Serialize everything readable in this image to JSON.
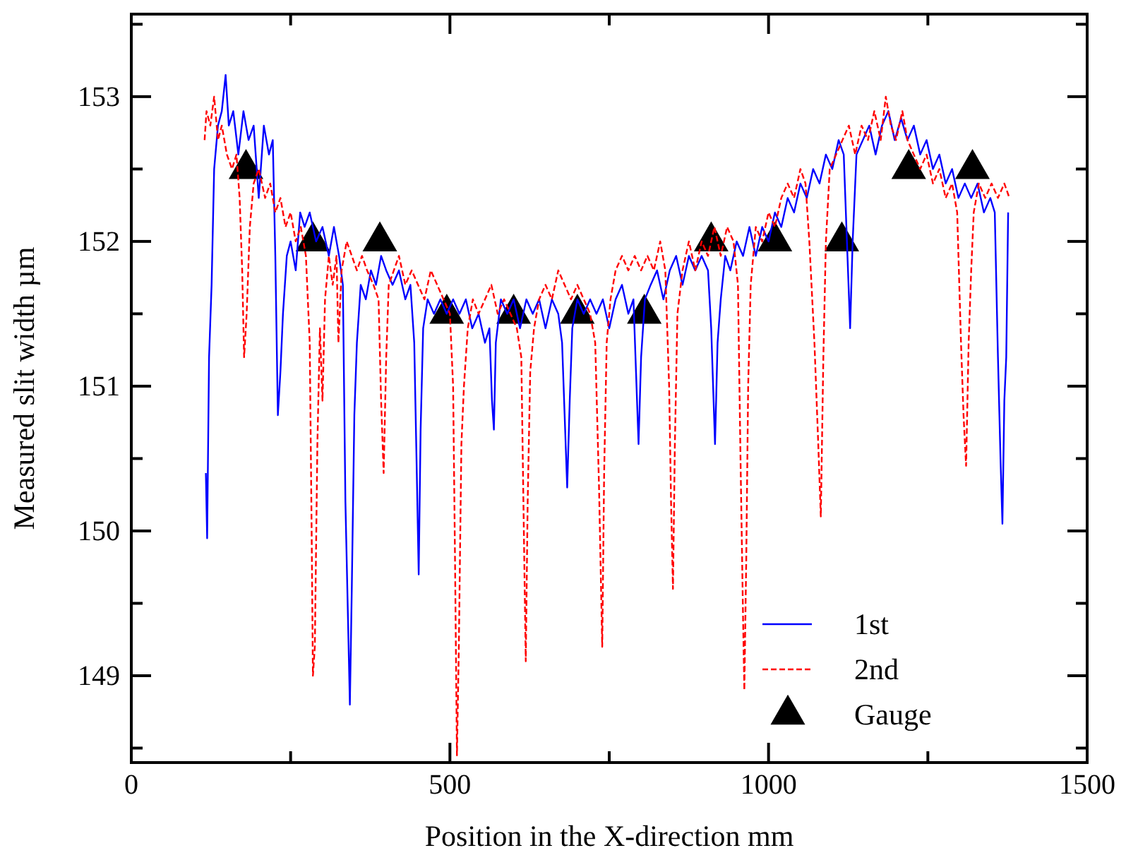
{
  "chart_data": {
    "type": "line",
    "xlabel": "Position in the X-direction  mm",
    "ylabel": "Measured slit width µm",
    "xlim": [
      0,
      1500
    ],
    "ylim": [
      148.4,
      153.57
    ],
    "xticks": [
      0,
      {
        "value": 250,
        "label": null
      },
      500,
      {
        "value": 750,
        "label": null
      },
      1000,
      {
        "value": 1250,
        "label": null
      },
      1500
    ],
    "yticks": [
      {
        "value": 148.5,
        "label": null
      },
      149,
      {
        "value": 149.5,
        "label": null
      },
      150,
      {
        "value": 150.5,
        "label": null
      },
      151,
      {
        "value": 151.5,
        "label": null
      },
      152,
      {
        "value": 152.5,
        "label": null
      },
      153,
      {
        "value": 153.5,
        "label": null
      }
    ],
    "grid": false,
    "legend": "bottom right",
    "series": [
      {
        "name": "1st",
        "color": "#0000ff",
        "line_style": "solid",
        "marker": "none",
        "x": [
          117,
          119,
          122,
          126,
          130,
          136,
          142,
          148,
          153,
          160,
          168,
          176,
          184,
          192,
          200,
          208,
          216,
          222,
          226,
          230,
          234,
          238,
          244,
          250,
          258,
          265,
          272,
          280,
          290,
          300,
          310,
          318,
          326,
          332,
          336,
          340,
          343,
          346,
          350,
          354,
          360,
          368,
          376,
          384,
          392,
          400,
          410,
          420,
          430,
          438,
          444,
          448,
          451,
          454,
          458,
          465,
          475,
          485,
          495,
          505,
          515,
          525,
          535,
          545,
          555,
          562,
          566,
          569,
          572,
          580,
          590,
          600,
          610,
          620,
          630,
          640,
          650,
          660,
          670,
          676,
          680,
          684,
          688,
          692,
          700,
          710,
          720,
          730,
          740,
          750,
          760,
          770,
          780,
          788,
          792,
          796,
          800,
          806,
          815,
          825,
          835,
          845,
          855,
          865,
          875,
          885,
          895,
          905,
          910,
          916,
          920,
          925,
          932,
          940,
          950,
          960,
          970,
          980,
          990,
          1000,
          1010,
          1020,
          1030,
          1040,
          1050,
          1060,
          1070,
          1080,
          1090,
          1100,
          1110,
          1118,
          1123,
          1128,
          1132,
          1138,
          1148,
          1158,
          1168,
          1178,
          1188,
          1198,
          1208,
          1218,
          1228,
          1238,
          1248,
          1258,
          1268,
          1278,
          1288,
          1298,
          1308,
          1318,
          1328,
          1338,
          1348,
          1355,
          1360,
          1364,
          1367,
          1370,
          1373,
          1376
        ],
        "values": [
          150.4,
          149.95,
          151.2,
          151.7,
          152.5,
          152.8,
          152.9,
          153.15,
          152.8,
          152.9,
          152.6,
          152.9,
          152.7,
          152.8,
          152.3,
          152.8,
          152.6,
          152.7,
          151.9,
          150.8,
          151.1,
          151.5,
          151.9,
          152.0,
          151.8,
          152.2,
          152.1,
          152.2,
          152.0,
          152.1,
          151.9,
          152.1,
          151.9,
          151.7,
          150.2,
          149.4,
          148.8,
          149.6,
          150.8,
          151.3,
          151.7,
          151.6,
          151.8,
          151.7,
          151.9,
          151.8,
          151.7,
          151.8,
          151.6,
          151.7,
          151.3,
          150.4,
          149.7,
          150.7,
          151.4,
          151.6,
          151.5,
          151.6,
          151.5,
          151.6,
          151.5,
          151.6,
          151.4,
          151.5,
          151.3,
          151.4,
          150.9,
          150.7,
          151.3,
          151.6,
          151.5,
          151.6,
          151.4,
          151.6,
          151.5,
          151.6,
          151.4,
          151.6,
          151.5,
          151.3,
          150.8,
          150.3,
          150.9,
          151.4,
          151.6,
          151.5,
          151.6,
          151.5,
          151.6,
          151.4,
          151.6,
          151.7,
          151.5,
          151.6,
          151.1,
          150.6,
          151.2,
          151.6,
          151.7,
          151.8,
          151.6,
          151.8,
          151.9,
          151.7,
          151.9,
          151.8,
          151.9,
          151.8,
          151.4,
          150.6,
          151.3,
          151.6,
          151.9,
          151.8,
          152.0,
          151.9,
          152.1,
          151.9,
          152.1,
          152.0,
          152.2,
          152.1,
          152.3,
          152.2,
          152.4,
          152.3,
          152.5,
          152.4,
          152.6,
          152.5,
          152.7,
          152.6,
          152.0,
          151.4,
          152.0,
          152.6,
          152.7,
          152.8,
          152.6,
          152.8,
          152.9,
          152.7,
          152.85,
          152.7,
          152.8,
          152.6,
          152.7,
          152.5,
          152.6,
          152.4,
          152.5,
          152.3,
          152.4,
          152.3,
          152.4,
          152.2,
          152.3,
          152.2,
          151.2,
          150.5,
          150.05,
          150.9,
          151.2,
          152.2
        ]
      },
      {
        "name": "2nd",
        "color": "#ff0000",
        "line_style": "dashed",
        "marker": "none",
        "x": [
          115,
          118,
          124,
          130,
          136,
          142,
          150,
          158,
          165,
          170,
          174,
          177,
          181,
          186,
          192,
          200,
          210,
          218,
          226,
          234,
          242,
          250,
          258,
          266,
          274,
          280,
          283,
          285,
          288,
          292,
          296,
          300,
          304,
          310,
          316,
          322,
          325,
          330,
          338,
          346,
          354,
          362,
          370,
          380,
          388,
          392,
          396,
          400,
          404,
          412,
          420,
          430,
          440,
          450,
          460,
          470,
          480,
          490,
          500,
          505,
          508,
          511,
          514,
          518,
          522,
          528,
          536,
          545,
          555,
          565,
          575,
          585,
          595,
          605,
          612,
          616,
          619,
          622,
          626,
          632,
          640,
          650,
          660,
          670,
          680,
          690,
          700,
          710,
          720,
          728,
          734,
          739,
          742,
          746,
          752,
          760,
          770,
          780,
          790,
          800,
          810,
          820,
          830,
          838,
          844,
          847,
          850,
          853,
          857,
          865,
          875,
          885,
          895,
          905,
          915,
          925,
          935,
          945,
          952,
          956,
          960,
          962,
          965,
          968,
          972,
          980,
          990,
          1000,
          1010,
          1020,
          1030,
          1040,
          1050,
          1058,
          1064,
          1072,
          1078,
          1082,
          1086,
          1090,
          1096,
          1106,
          1116,
          1126,
          1136,
          1146,
          1156,
          1166,
          1176,
          1184,
          1192,
          1200,
          1210,
          1218,
          1228,
          1238,
          1248,
          1258,
          1268,
          1278,
          1288,
          1296,
          1302,
          1306,
          1310,
          1314,
          1318,
          1322,
          1330,
          1340,
          1350,
          1360,
          1370,
          1378
        ],
        "values": [
          152.7,
          152.9,
          152.8,
          153.0,
          152.7,
          152.8,
          152.6,
          152.5,
          152.6,
          152.3,
          151.8,
          151.2,
          151.5,
          152.1,
          152.4,
          152.5,
          152.3,
          152.4,
          152.2,
          152.3,
          152.1,
          152.2,
          152.0,
          152.1,
          151.9,
          151.3,
          150.0,
          149.0,
          149.2,
          150.6,
          151.4,
          150.9,
          151.6,
          151.9,
          151.7,
          151.9,
          151.3,
          151.8,
          152.0,
          151.9,
          151.8,
          151.9,
          151.8,
          151.7,
          151.6,
          150.9,
          150.4,
          151.2,
          151.7,
          151.8,
          151.9,
          151.7,
          151.8,
          151.7,
          151.6,
          151.8,
          151.7,
          151.6,
          151.5,
          151.0,
          149.8,
          148.45,
          149.2,
          150.6,
          151.0,
          151.4,
          151.6,
          151.5,
          151.6,
          151.7,
          151.5,
          151.6,
          151.5,
          151.4,
          151.2,
          150.0,
          149.1,
          150.2,
          151.1,
          151.4,
          151.6,
          151.7,
          151.6,
          151.8,
          151.7,
          151.6,
          151.7,
          151.6,
          151.5,
          151.3,
          150.3,
          149.2,
          150.4,
          151.3,
          151.6,
          151.8,
          151.9,
          151.8,
          151.9,
          151.8,
          151.9,
          151.8,
          152.0,
          151.8,
          151.0,
          150.2,
          149.6,
          150.6,
          151.5,
          151.8,
          152.0,
          151.8,
          152.0,
          151.9,
          152.1,
          151.9,
          152.1,
          152.0,
          151.7,
          150.5,
          149.4,
          148.9,
          149.8,
          151.0,
          151.7,
          152.1,
          152.0,
          152.2,
          152.1,
          152.3,
          152.4,
          152.3,
          152.5,
          152.4,
          152.0,
          151.3,
          150.6,
          150.1,
          151.2,
          152.0,
          152.5,
          152.6,
          152.7,
          152.8,
          152.6,
          152.8,
          152.7,
          152.9,
          152.7,
          153.0,
          152.8,
          152.7,
          152.9,
          152.7,
          152.6,
          152.5,
          152.6,
          152.4,
          152.5,
          152.3,
          152.4,
          152.2,
          151.3,
          150.8,
          150.45,
          151.3,
          151.8,
          152.2,
          152.4,
          152.3,
          152.4,
          152.3,
          152.4,
          152.3
        ]
      },
      {
        "name": "Gauge",
        "type": "scatter",
        "color": "#000000",
        "marker": "triangle",
        "x": [
          180,
          285,
          390,
          495,
          600,
          700,
          805,
          910,
          1010,
          1115,
          1220,
          1320
        ],
        "values": [
          152.5,
          152.0,
          152.0,
          151.5,
          151.5,
          151.5,
          151.5,
          152.0,
          152.0,
          152.0,
          152.5,
          152.5
        ]
      }
    ]
  }
}
